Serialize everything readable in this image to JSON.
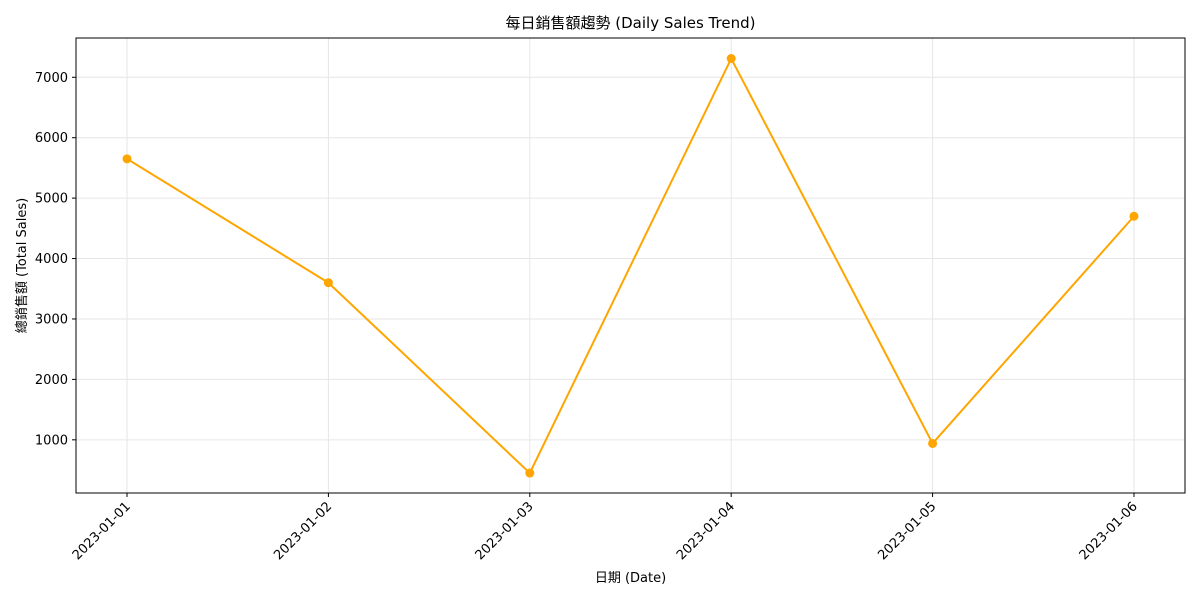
{
  "chart_data": {
    "type": "line",
    "title": "每日銷售額趨勢 (Daily Sales Trend)",
    "xlabel": "日期 (Date)",
    "ylabel": "總銷售額 (Total Sales)",
    "categories": [
      "2023-01-01",
      "2023-01-02",
      "2023-01-03",
      "2023-01-04",
      "2023-01-05",
      "2023-01-06"
    ],
    "series": [
      {
        "values": [
          5650,
          3600,
          450,
          7310,
          940,
          4700
        ]
      }
    ],
    "ylim": [
      120,
      7650
    ],
    "yticks": [
      1000,
      2000,
      3000,
      4000,
      5000,
      6000,
      7000
    ],
    "grid": true,
    "colors": {
      "line": "#ffa500",
      "grid": "#e6e6e6",
      "axis": "#000000"
    },
    "marker": "circle"
  }
}
